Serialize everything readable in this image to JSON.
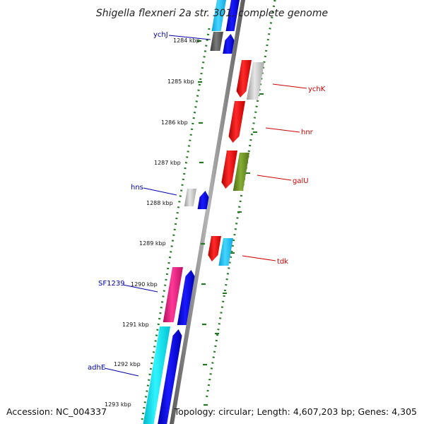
{
  "map": {
    "title": "Shigella flexneri 2a str. 301, complete genome",
    "accession": "Accession: NC_004337",
    "summary": "Topology: circular; Length: 4,607,203 bp; Genes: 4,305",
    "ticks": [
      "1284 kbp",
      "1285 kbp",
      "1286 kbp",
      "1287 kbp",
      "1288 kbp",
      "1289 kbp",
      "1290 kbp",
      "1291 kbp",
      "1292 kbp",
      "1293 kbp"
    ],
    "gene_labels": {
      "ychJ": "ychJ",
      "ychK": "ychK",
      "hnr": "hnr",
      "galU": "galU",
      "hns": "hns",
      "tdk": "tdk",
      "SF1239": "SF1239",
      "adhE": "adhE"
    },
    "colors": {
      "backbone": "#8a8a8a",
      "frame": "#1f7a1f",
      "forward_label": "#cc0000",
      "reverse_label": "#0000aa",
      "red": "#ff0000",
      "blue": "#0000ee",
      "cyan": "#00e0ee",
      "lightblue": "#22c8ff",
      "grey": "#bdbdbd",
      "darkgrey": "#555555",
      "olive": "#6b8e23",
      "magenta": "#e8187a"
    }
  }
}
